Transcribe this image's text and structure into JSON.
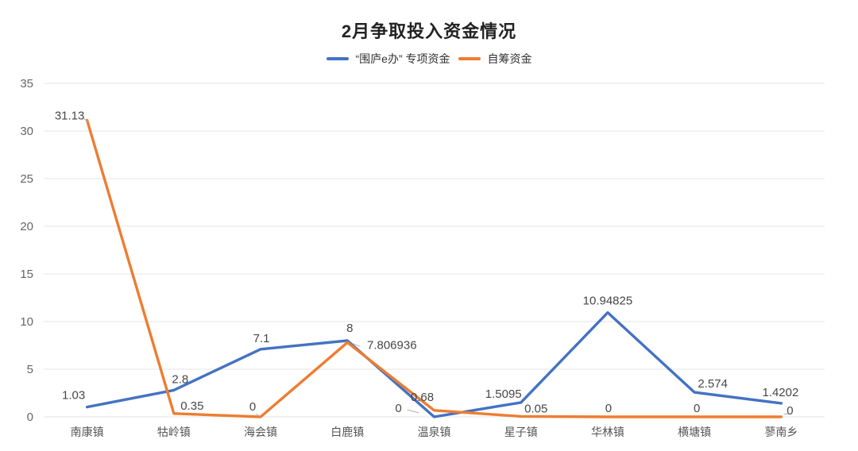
{
  "title": "2月争取投入资金情况",
  "chart_data": {
    "type": "line",
    "title": "2月争取投入资金情况",
    "categories": [
      "南康镇",
      "牯岭镇",
      "海会镇",
      "白鹿镇",
      "温泉镇",
      "星子镇",
      "华林镇",
      "横塘镇",
      "蓼南乡"
    ],
    "series": [
      {
        "name": "“围庐e办” 专项资金",
        "color": "#4472c4",
        "values": [
          1.03,
          2.8,
          7.1,
          8,
          0,
          1.5095,
          10.94825,
          2.574,
          1.4202
        ]
      },
      {
        "name": "自筹资金",
        "color": "#ed7d31",
        "values": [
          31.13,
          0.35,
          0,
          7.806936,
          0.68,
          0.05,
          0,
          0,
          0
        ]
      }
    ],
    "xlabel": "",
    "ylabel": "",
    "ylim": [
      0,
      35
    ],
    "yticks": [
      0,
      5,
      10,
      15,
      20,
      25,
      30,
      35
    ],
    "grid": true,
    "legend_position": "top",
    "data_labels": true,
    "grid_color": "#e4e4e4",
    "axis_text_color": "#666666",
    "data_label_color": "#474747",
    "leader_line_color": "#b3b3b3",
    "background_color": "#ffffff"
  }
}
